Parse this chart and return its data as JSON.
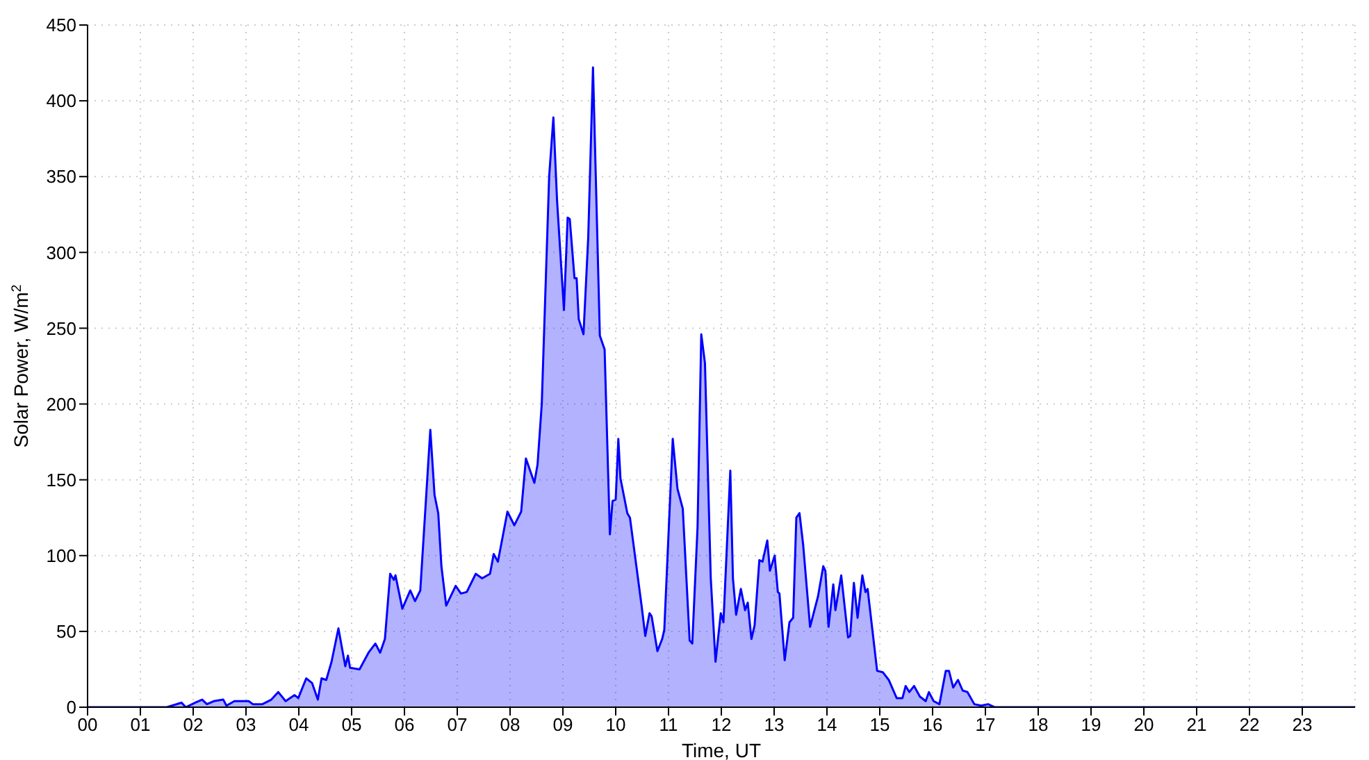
{
  "chart_data": {
    "type": "area",
    "xlabel": "Time, UT",
    "ylabel": "Solar Power, W/m$^{2}$",
    "x": [
      0,
      1.5,
      1.78,
      1.86,
      2.04,
      2.17,
      2.26,
      2.39,
      2.57,
      2.63,
      2.78,
      3.05,
      3.13,
      3.31,
      3.48,
      3.61,
      3.75,
      3.92,
      3.99,
      4.14,
      4.25,
      4.36,
      4.43,
      4.52,
      4.62,
      4.75,
      4.88,
      4.93,
      4.97,
      5.15,
      5.32,
      5.45,
      5.54,
      5.63,
      5.73,
      5.8,
      5.83,
      5.96,
      6.11,
      6.2,
      6.3,
      6.49,
      6.57,
      6.64,
      6.7,
      6.79,
      6.97,
      7.07,
      7.18,
      7.35,
      7.47,
      7.62,
      7.69,
      7.77,
      7.95,
      8.08,
      8.21,
      8.3,
      8.46,
      8.52,
      8.6,
      8.74,
      8.82,
      8.89,
      9.02,
      9.09,
      9.13,
      9.22,
      9.26,
      9.3,
      9.39,
      9.48,
      9.57,
      9.7,
      9.79,
      9.89,
      9.94,
      10.0,
      10.05,
      10.09,
      10.22,
      10.27,
      10.49,
      10.56,
      10.64,
      10.68,
      10.79,
      10.88,
      10.92,
      11.08,
      11.17,
      11.27,
      11.4,
      11.45,
      11.55,
      11.62,
      11.69,
      11.8,
      11.89,
      11.99,
      12.04,
      12.17,
      12.22,
      12.28,
      12.37,
      12.45,
      12.5,
      12.57,
      12.63,
      12.72,
      12.78,
      12.87,
      12.92,
      13.01,
      13.07,
      13.1,
      13.2,
      13.29,
      13.36,
      13.42,
      13.48,
      13.55,
      13.68,
      13.83,
      13.93,
      13.97,
      14.03,
      14.12,
      14.16,
      14.27,
      14.4,
      14.44,
      14.51,
      14.58,
      14.67,
      14.73,
      14.77,
      14.86,
      14.95,
      15.06,
      15.17,
      15.32,
      15.43,
      15.49,
      15.56,
      15.65,
      15.76,
      15.87,
      15.93,
      16.02,
      16.13,
      16.25,
      16.31,
      16.39,
      16.48,
      16.57,
      16.66,
      16.79,
      16.92,
      17.05,
      17.18,
      24
    ],
    "series": [
      {
        "color": "#0000ff",
        "values": [
          0,
          0,
          3,
          0,
          3,
          5,
          2,
          4,
          5,
          1,
          4,
          4,
          2,
          2,
          5,
          10,
          4,
          8,
          6,
          19,
          16,
          5,
          19,
          18,
          30,
          52,
          27,
          34,
          26,
          25,
          36,
          42,
          36,
          45,
          88,
          84,
          87,
          65,
          77,
          70,
          77,
          183,
          140,
          128,
          93,
          67,
          80,
          75,
          76,
          88,
          85,
          88,
          101,
          96,
          129,
          120,
          129,
          164,
          148,
          160,
          200,
          350,
          389,
          334,
          262,
          323,
          322,
          283,
          283,
          256,
          246,
          310,
          422,
          245,
          236,
          114,
          136,
          137,
          177,
          151,
          128,
          125,
          67,
          47,
          62,
          60,
          37,
          45,
          51,
          177,
          144,
          131,
          44,
          42,
          119,
          246,
          227,
          85,
          30,
          62,
          56,
          156,
          85,
          61,
          78,
          64,
          69,
          45,
          54,
          97,
          96,
          110,
          90,
          100,
          76,
          75,
          31,
          56,
          59,
          125,
          128,
          107,
          53,
          73,
          93,
          90,
          53,
          81,
          64,
          87,
          46,
          47,
          82,
          59,
          87,
          76,
          78,
          51,
          24,
          23,
          18,
          6,
          6,
          14,
          10,
          14,
          7,
          4,
          10,
          4,
          2,
          24,
          24,
          13,
          18,
          11,
          10,
          2,
          1,
          2,
          0,
          0
        ]
      }
    ],
    "xlim": [
      0,
      24
    ],
    "xticks": [
      {
        "value": 0,
        "label": "00"
      },
      {
        "value": 1,
        "label": "01"
      },
      {
        "value": 2,
        "label": "02"
      },
      {
        "value": 3,
        "label": "03"
      },
      {
        "value": 4,
        "label": "04"
      },
      {
        "value": 5,
        "label": "05"
      },
      {
        "value": 6,
        "label": "06"
      },
      {
        "value": 7,
        "label": "07"
      },
      {
        "value": 8,
        "label": "08"
      },
      {
        "value": 9,
        "label": "09"
      },
      {
        "value": 10,
        "label": "10"
      },
      {
        "value": 11,
        "label": "11"
      },
      {
        "value": 12,
        "label": "12"
      },
      {
        "value": 13,
        "label": "13"
      },
      {
        "value": 14,
        "label": "14"
      },
      {
        "value": 15,
        "label": "15"
      },
      {
        "value": 16,
        "label": "16"
      },
      {
        "value": 17,
        "label": "17"
      },
      {
        "value": 18,
        "label": "18"
      },
      {
        "value": 19,
        "label": "19"
      },
      {
        "value": 20,
        "label": "20"
      },
      {
        "value": 21,
        "label": "21"
      },
      {
        "value": 22,
        "label": "22"
      },
      {
        "value": 23,
        "label": "23"
      }
    ],
    "ylim": [
      0,
      450
    ],
    "yticks": [
      0,
      50,
      100,
      150,
      200,
      250,
      300,
      350,
      400,
      450
    ],
    "grid": true,
    "marker": "none",
    "line_style": "solid"
  }
}
